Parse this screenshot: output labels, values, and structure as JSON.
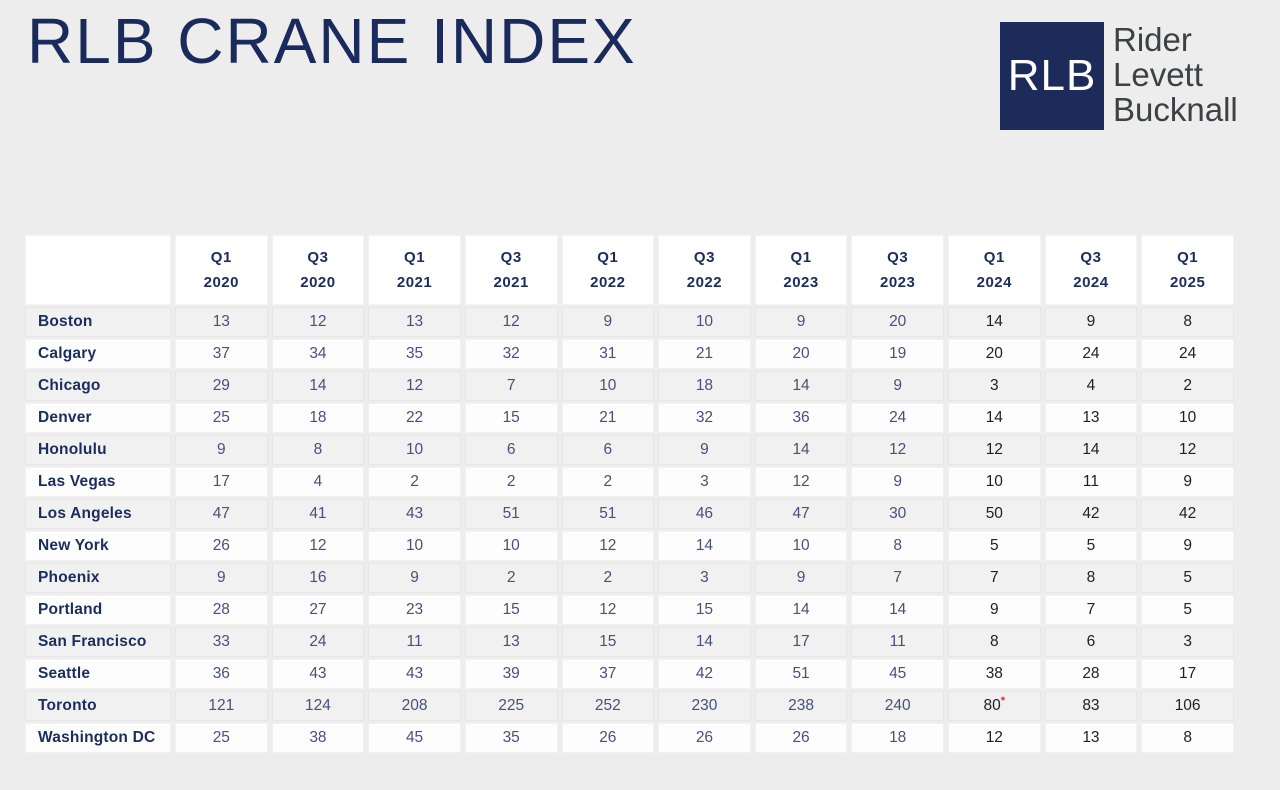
{
  "page": {
    "title": "RLB CRANE INDEX"
  },
  "logo": {
    "abbr": "RLB",
    "lines": [
      "Rider",
      "Levett",
      "Bucknall"
    ],
    "square_color": "#1d2b5b",
    "text_color": "#3f4042"
  },
  "colors": {
    "page_background": "#ecedec",
    "navy_heading": "#1b2d5e",
    "title_navy": "#1b2a5c",
    "value_navy": "#46517c",
    "value_dark": "#202124",
    "row_stripe": "#f0f1f0",
    "row_white": "#fdfdfd",
    "asterisk_red": "#d0342c"
  },
  "chart_data": {
    "type": "table",
    "title": "RLB CRANE INDEX",
    "columns": [
      {
        "quarter": "Q1",
        "year": "2020"
      },
      {
        "quarter": "Q3",
        "year": "2020"
      },
      {
        "quarter": "Q1",
        "year": "2021"
      },
      {
        "quarter": "Q3",
        "year": "2021"
      },
      {
        "quarter": "Q1",
        "year": "2022"
      },
      {
        "quarter": "Q3",
        "year": "2022"
      },
      {
        "quarter": "Q1",
        "year": "2023"
      },
      {
        "quarter": "Q3",
        "year": "2023"
      },
      {
        "quarter": "Q1",
        "year": "2024"
      },
      {
        "quarter": "Q3",
        "year": "2024"
      },
      {
        "quarter": "Q1",
        "year": "2025"
      }
    ],
    "dark_value_columns": [
      8,
      9,
      10
    ],
    "rows": [
      {
        "city": "Boston",
        "values": [
          "13",
          "12",
          "13",
          "12",
          "9",
          "10",
          "9",
          "20",
          "14",
          "9",
          "8"
        ]
      },
      {
        "city": "Calgary",
        "values": [
          "37",
          "34",
          "35",
          "32",
          "31",
          "21",
          "20",
          "19",
          "20",
          "24",
          "24"
        ]
      },
      {
        "city": "Chicago",
        "values": [
          "29",
          "14",
          "12",
          "7",
          "10",
          "18",
          "14",
          "9",
          "3",
          "4",
          "2"
        ]
      },
      {
        "city": "Denver",
        "values": [
          "25",
          "18",
          "22",
          "15",
          "21",
          "32",
          "36",
          "24",
          "14",
          "13",
          "10"
        ]
      },
      {
        "city": "Honolulu",
        "values": [
          "9",
          "8",
          "10",
          "6",
          "6",
          "9",
          "14",
          "12",
          "12",
          "14",
          "12"
        ]
      },
      {
        "city": "Las Vegas",
        "values": [
          "17",
          "4",
          "2",
          "2",
          "2",
          "3",
          "12",
          "9",
          "10",
          "11",
          "9"
        ]
      },
      {
        "city": "Los Angeles",
        "values": [
          "47",
          "41",
          "43",
          "51",
          "51",
          "46",
          "47",
          "30",
          "50",
          "42",
          "42"
        ]
      },
      {
        "city": "New York",
        "values": [
          "26",
          "12",
          "10",
          "10",
          "12",
          "14",
          "10",
          "8",
          "5",
          "5",
          "9"
        ]
      },
      {
        "city": "Phoenix",
        "values": [
          "9",
          "16",
          "9",
          "2",
          "2",
          "3",
          "9",
          "7",
          "7",
          "8",
          "5"
        ]
      },
      {
        "city": "Portland",
        "values": [
          "28",
          "27",
          "23",
          "15",
          "12",
          "15",
          "14",
          "14",
          "9",
          "7",
          "5"
        ]
      },
      {
        "city": "San Francisco",
        "values": [
          "33",
          "24",
          "11",
          "13",
          "15",
          "14",
          "17",
          "11",
          "8",
          "6",
          "3"
        ]
      },
      {
        "city": "Seattle",
        "values": [
          "36",
          "43",
          "43",
          "39",
          "37",
          "42",
          "51",
          "45",
          "38",
          "28",
          "17"
        ]
      },
      {
        "city": "Toronto",
        "values": [
          "121",
          "124",
          "208",
          "225",
          "252",
          "230",
          "238",
          "240",
          "80*",
          "83",
          "106"
        ]
      },
      {
        "city": "Washington DC",
        "values": [
          "25",
          "38",
          "45",
          "35",
          "26",
          "26",
          "26",
          "18",
          "12",
          "13",
          "8"
        ]
      }
    ],
    "footnote_marker": "*"
  }
}
